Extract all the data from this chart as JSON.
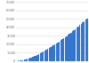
{
  "values": [
    28,
    50,
    75,
    105,
    140,
    180,
    225,
    275,
    330,
    390,
    455,
    520,
    590,
    665,
    745,
    830,
    920,
    1015,
    1110,
    1210,
    1315,
    1420,
    1530,
    1640,
    1750,
    1860,
    1975,
    2090,
    2210,
    2330,
    2455,
    2580,
    2710,
    2840,
    2970,
    3100,
    3235,
    3370,
    3510,
    3650,
    3795,
    3940,
    4090,
    4240,
    4395,
    4550,
    4710,
    4870,
    5030
  ],
  "bar_color": "#3475d0",
  "background_color": "#ffffff",
  "grid_color": "#d9d9d9",
  "ylim": [
    0,
    7000
  ],
  "yticks": [
    0,
    1000,
    2000,
    3000,
    4000,
    5000,
    6000,
    7000
  ],
  "ytick_labels": [
    "0",
    "1,000",
    "2,000",
    "3,000",
    "4,000",
    "5,000",
    "6,000",
    "7,000"
  ]
}
